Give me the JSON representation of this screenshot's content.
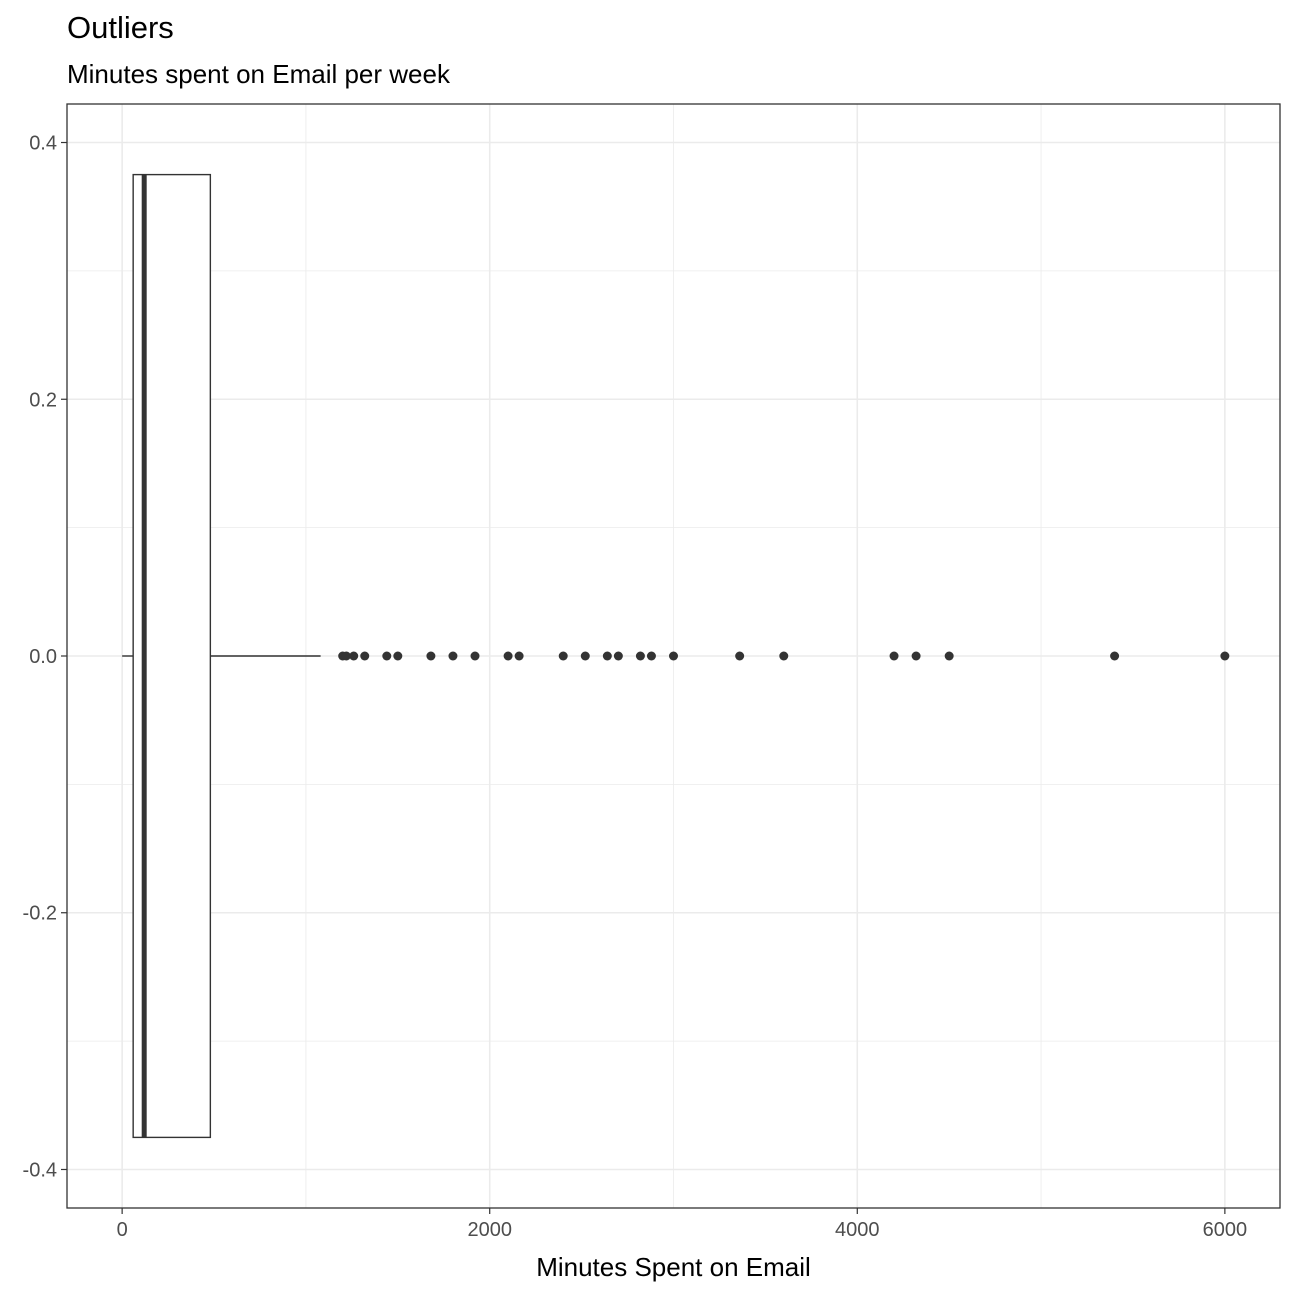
{
  "chart_data": {
    "type": "boxplot",
    "title": "Outliers",
    "subtitle": "Minutes spent on Email per week",
    "xlabel": "Minutes Spent on Email",
    "ylabel": "",
    "xlim": [
      -300,
      6300
    ],
    "ylim": [
      -0.43,
      0.43
    ],
    "x_ticks": [
      0,
      2000,
      4000,
      6000
    ],
    "x_tick_labels": [
      "0",
      "2000",
      "4000",
      "6000"
    ],
    "y_ticks": [
      0.4,
      0.2,
      0.0,
      -0.2,
      -0.4
    ],
    "y_tick_labels": [
      "0.4",
      "0.2",
      "0.0",
      "-0.2",
      "-0.4"
    ],
    "grid": true,
    "box": {
      "lower_whisker": 0,
      "q1": 60,
      "median": 120,
      "q3": 480,
      "upper_whisker": 1080,
      "y_center": 0,
      "y_half_height": 0.375
    },
    "outliers": [
      1200,
      1220,
      1260,
      1320,
      1440,
      1500,
      1680,
      1800,
      1920,
      2100,
      2160,
      2400,
      2520,
      2640,
      2700,
      2820,
      2880,
      3000,
      3360,
      3600,
      4200,
      4320,
      4500,
      5400,
      6000
    ],
    "colors": {
      "box_stroke": "#333333",
      "median": "#333333",
      "points": "#333333",
      "grid": "#ebebeb",
      "panel_border": "#333333"
    }
  }
}
